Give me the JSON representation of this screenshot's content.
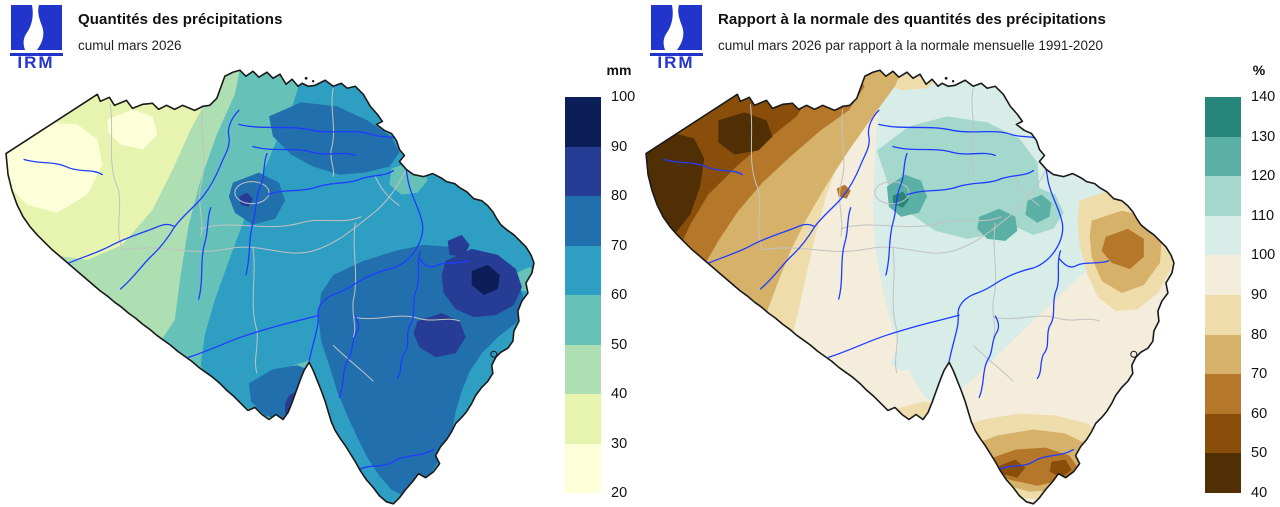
{
  "logo": {
    "text": "IRM",
    "color": "#2134cb"
  },
  "left_panel": {
    "title": "Quantités des précipitations",
    "subtitle": "cumul mars 2026",
    "legend_unit": "mm",
    "legend_labels": [
      "100",
      "90",
      "80",
      "70",
      "60",
      "50",
      "40",
      "30",
      "20"
    ],
    "legend_colors_top_to_bottom": [
      "#0C1E58",
      "#263C95",
      "#226FAE",
      "#2E9FC2",
      "#66C2B8",
      "#AEDFB2",
      "#E7F4B0",
      "#FDFFD8"
    ]
  },
  "right_panel": {
    "title": "Rapport à la normale des quantités des précipitations",
    "subtitle": "cumul mars 2026 par rapport à la normale mensuelle 1991-2020",
    "legend_unit": "%",
    "legend_labels": [
      "140",
      "130",
      "120",
      "110",
      "100",
      "90",
      "80",
      "70",
      "60",
      "50",
      "40"
    ],
    "legend_colors_top_to_bottom": [
      "#27857C",
      "#5BB0A6",
      "#A4D8CC",
      "#D8ECE8",
      "#F4EDDC",
      "#EFDCAB",
      "#D6B169",
      "#B5782A",
      "#8A4E0B",
      "#512F05"
    ]
  },
  "map": {
    "country": "Belgique",
    "border_color": "#1a1a1a",
    "river_color": "#1e3cff",
    "province_border_color": "#c2c2c2"
  }
}
